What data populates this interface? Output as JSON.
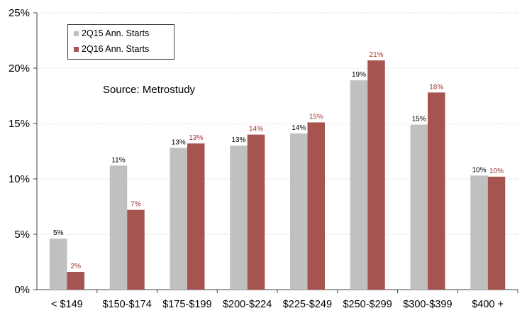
{
  "chart_data": {
    "type": "bar",
    "title": "",
    "xlabel": "",
    "ylabel": "",
    "ylim": [
      0,
      25
    ],
    "yticks": [
      "0%",
      "5%",
      "10%",
      "15%",
      "20%",
      "25%"
    ],
    "ytick_values": [
      0,
      5,
      10,
      15,
      20,
      25
    ],
    "categories": [
      "< $149",
      "$150-$174",
      "$175-$199",
      "$200-$224",
      "$225-$249",
      "$250-$299",
      "$300-$399",
      "$400   +"
    ],
    "series": [
      {
        "name": "2Q15 Ann. Starts",
        "color": "#c0c0c0",
        "label_color": "#000000",
        "values": [
          4.6,
          11.2,
          12.8,
          13.0,
          14.1,
          18.9,
          14.9,
          10.3
        ],
        "labels": [
          "5%",
          "11%",
          "13%",
          "13%",
          "14%",
          "19%",
          "15%",
          "10%"
        ]
      },
      {
        "name": "2Q16 Ann. Starts",
        "color": "#a65450",
        "label_color": "#a03030",
        "values": [
          1.6,
          7.2,
          13.2,
          14.0,
          15.1,
          20.7,
          17.8,
          10.2
        ],
        "labels": [
          "2%",
          "7%",
          "13%",
          "14%",
          "15%",
          "21%",
          "18%",
          "10%"
        ]
      }
    ],
    "legend_position": "top-left",
    "annotation": "Source: Metrostudy"
  }
}
